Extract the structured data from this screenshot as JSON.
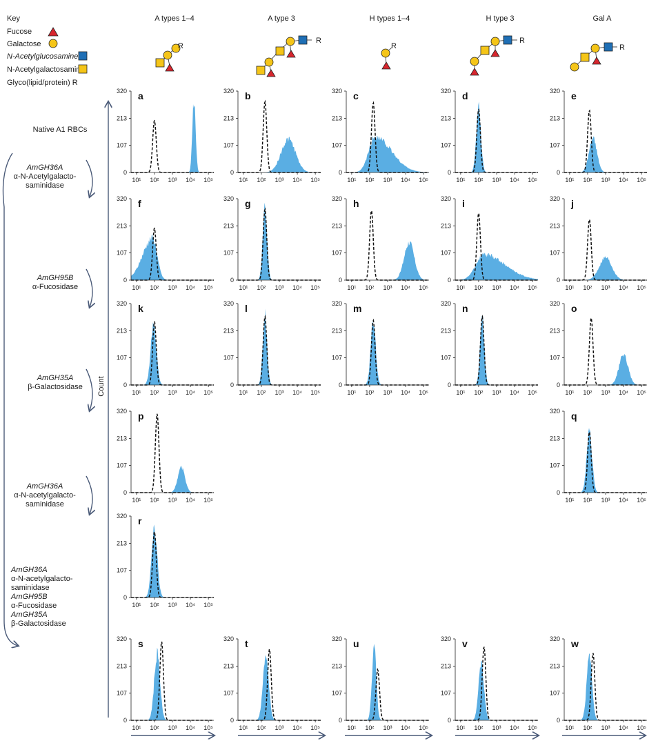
{
  "key": {
    "title": "Key",
    "items": [
      {
        "label": "Fucose",
        "symbol": "fucose-icon"
      },
      {
        "label": "Galactose",
        "symbol": "galactose-icon"
      },
      {
        "label": "N-Acetylglucosamine",
        "symbol": "glcnac-icon"
      },
      {
        "label": "N-Acetylgalactosamine",
        "symbol": "galnac-icon"
      },
      {
        "label": "Glyco(lipid/protein) R",
        "symbol": ""
      }
    ]
  },
  "columns": [
    "A types 1–4",
    "A type 3",
    "H types 1–4",
    "H type 3",
    "Gal A"
  ],
  "glycan_r_label": "R",
  "rows": [
    {
      "lines": [
        "Native A1 RBCs"
      ]
    },
    {
      "lines": [
        "AmGH36A",
        "α-N-Acetylgalacto-",
        "saminidase"
      ]
    },
    {
      "lines": [
        "AmGH95B",
        "α-Fucosidase"
      ]
    },
    {
      "lines": [
        "AmGH35A",
        "β-Galactosidase"
      ]
    },
    {
      "lines": [
        "AmGH36A",
        "α-N-acetylgalacto-",
        "saminidase"
      ]
    },
    {
      "lines": [
        "AmGH36A",
        "α-N-acetylgalacto-",
        "saminidase",
        "AmGH95B",
        "α-Fucosidase",
        "AmGH35A",
        "β-Galactosidase"
      ]
    }
  ],
  "y_axis_label": "Count",
  "colors": {
    "sample": "#5aaee3",
    "control": "#111111",
    "fucose": "#d7262e",
    "galactose": "#f5c518",
    "glcnac": "#1f6fb5",
    "galnac": "#f5c518",
    "arrow": "#4a5a78"
  },
  "chart_data": {
    "type": "area",
    "description_axes": {
      "x_scale": "log",
      "xlim": [
        5,
        200000
      ],
      "ylim": [
        0,
        320
      ],
      "x_ticks": [
        "10¹",
        "10²",
        "10³",
        "10⁴",
        "10⁵"
      ],
      "y_ticks": [
        "0",
        "107",
        "213",
        "320"
      ]
    },
    "panels": [
      {
        "id": "a",
        "control": {
          "peak_log10": 2.0,
          "height": 205
        },
        "sample": {
          "peak_log10": 4.2,
          "height": 285,
          "width": 0.09
        }
      },
      {
        "id": "b",
        "control": {
          "peak_log10": 2.2,
          "height": 280
        },
        "sample": {
          "peak_log10": 3.5,
          "height": 130,
          "width": 0.4
        }
      },
      {
        "id": "c",
        "control": {
          "peak_log10": 2.2,
          "height": 275
        },
        "sample": {
          "peak_log10": 2.3,
          "height": 140,
          "width": 0.35,
          "tail": true
        }
      },
      {
        "id": "d",
        "control": {
          "peak_log10": 2.0,
          "height": 250
        },
        "sample": {
          "peak_log10": 2.0,
          "height": 255,
          "width": 0.13
        }
      },
      {
        "id": "e",
        "control": {
          "peak_log10": 2.1,
          "height": 245
        },
        "sample": {
          "peak_log10": 2.3,
          "height": 135,
          "width": 0.22
        }
      },
      {
        "id": "f",
        "control": {
          "peak_log10": 2.0,
          "height": 205
        },
        "sample": {
          "peak_log10": 1.9,
          "height": 165,
          "width": 0.25,
          "tail_left": true
        }
      },
      {
        "id": "g",
        "control": {
          "peak_log10": 2.2,
          "height": 280
        },
        "sample": {
          "peak_log10": 2.2,
          "height": 285,
          "width": 0.12
        }
      },
      {
        "id": "h",
        "control": {
          "peak_log10": 2.1,
          "height": 275
        },
        "sample": {
          "peak_log10": 4.2,
          "height": 150,
          "width": 0.28
        }
      },
      {
        "id": "i",
        "control": {
          "peak_log10": 2.0,
          "height": 265
        },
        "sample": {
          "peak_log10": 2.3,
          "height": 100,
          "width": 0.45,
          "tail": true
        }
      },
      {
        "id": "j",
        "control": {
          "peak_log10": 2.1,
          "height": 240
        },
        "sample": {
          "peak_log10": 3.0,
          "height": 90,
          "width": 0.35
        }
      },
      {
        "id": "k",
        "control": {
          "peak_log10": 2.0,
          "height": 250
        },
        "sample": {
          "peak_log10": 1.95,
          "height": 230,
          "width": 0.16
        }
      },
      {
        "id": "l",
        "control": {
          "peak_log10": 2.2,
          "height": 270
        },
        "sample": {
          "peak_log10": 2.2,
          "height": 275,
          "width": 0.12
        }
      },
      {
        "id": "m",
        "control": {
          "peak_log10": 2.2,
          "height": 255
        },
        "sample": {
          "peak_log10": 2.2,
          "height": 250,
          "width": 0.14
        }
      },
      {
        "id": "n",
        "control": {
          "peak_log10": 2.2,
          "height": 270
        },
        "sample": {
          "peak_log10": 2.2,
          "height": 270,
          "width": 0.12
        }
      },
      {
        "id": "o",
        "control": {
          "peak_log10": 2.2,
          "height": 265
        },
        "sample": {
          "peak_log10": 4.0,
          "height": 120,
          "width": 0.25
        }
      },
      {
        "id": "p",
        "control": {
          "peak_log10": 2.15,
          "height": 310
        },
        "sample": {
          "peak_log10": 3.5,
          "height": 100,
          "width": 0.2
        }
      },
      {
        "id": "q",
        "control": {
          "peak_log10": 2.1,
          "height": 240
        },
        "sample": {
          "peak_log10": 2.1,
          "height": 235,
          "width": 0.15
        }
      },
      {
        "id": "r",
        "control": {
          "peak_log10": 2.0,
          "height": 260
        },
        "sample": {
          "peak_log10": 2.0,
          "height": 270,
          "width": 0.16
        }
      },
      {
        "id": "s",
        "control": {
          "peak_log10": 2.4,
          "height": 310
        },
        "sample": {
          "peak_log10": 2.15,
          "height": 260,
          "width": 0.16
        }
      },
      {
        "id": "t",
        "control": {
          "peak_log10": 2.45,
          "height": 280
        },
        "sample": {
          "peak_log10": 2.25,
          "height": 260,
          "width": 0.16
        }
      },
      {
        "id": "u",
        "control": {
          "peak_log10": 2.45,
          "height": 200
        },
        "sample": {
          "peak_log10": 2.25,
          "height": 290,
          "width": 0.12
        }
      },
      {
        "id": "v",
        "control": {
          "peak_log10": 2.3,
          "height": 290
        },
        "sample": {
          "peak_log10": 2.15,
          "height": 230,
          "width": 0.15
        }
      },
      {
        "id": "w",
        "control": {
          "peak_log10": 2.3,
          "height": 265
        },
        "sample": {
          "peak_log10": 2.1,
          "height": 250,
          "width": 0.15
        }
      }
    ]
  }
}
